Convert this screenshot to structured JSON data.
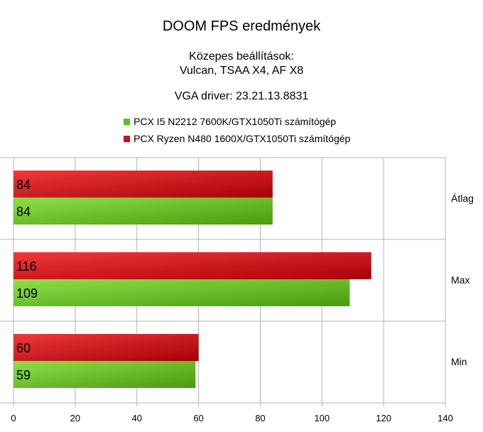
{
  "chart_data": {
    "type": "bar",
    "orientation": "horizontal",
    "title": "DOOM FPS eredmények",
    "subtitle_lines": [
      "Közepes beállítások:",
      "Vulcan, TSAA X4, AF X8",
      "VGA driver: 23.21.13.8831"
    ],
    "categories": [
      "Átlag",
      "Max",
      "Min"
    ],
    "series": [
      {
        "name": "PCX I5 N2212 7600K/GTX1050Ti számítógép",
        "color": "#5fbf1c",
        "values": [
          84,
          109,
          59
        ]
      },
      {
        "name": "PCX Ryzen N480 1600X/GTX1050Ti számítógép",
        "color": "#c8121a",
        "values": [
          84,
          116,
          60
        ]
      }
    ],
    "xlim": [
      0,
      140
    ],
    "xticks": [
      0,
      20,
      40,
      60,
      80,
      100,
      120,
      140
    ],
    "xlabel": "",
    "ylabel": "",
    "grid": true,
    "legend_position": "top"
  }
}
